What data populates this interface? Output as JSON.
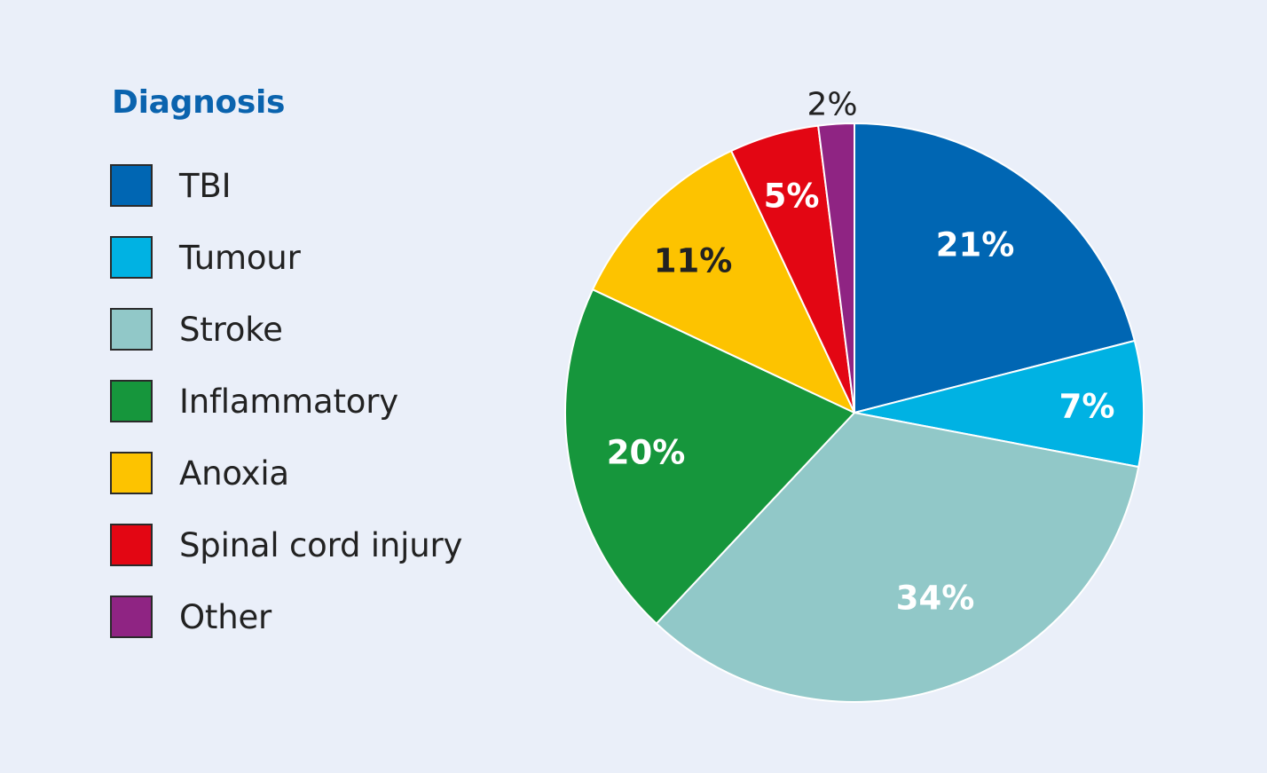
{
  "chart_data": {
    "type": "pie",
    "legend_title": "Diagnosis",
    "legend_position": "left",
    "slices": [
      {
        "name": "TBI",
        "value": 21,
        "label": "21%",
        "color": "#0066b3",
        "label_color": "#ffffff",
        "label_outside": false
      },
      {
        "name": "Tumour",
        "value": 7,
        "label": "7%",
        "color": "#00b2e3",
        "label_color": "#ffffff",
        "label_outside": false
      },
      {
        "name": "Stroke",
        "value": 34,
        "label": "34%",
        "color": "#91c8c8",
        "label_color": "#ffffff",
        "label_outside": false
      },
      {
        "name": "Inflammatory",
        "value": 20,
        "label": "20%",
        "color": "#16963c",
        "label_color": "#ffffff",
        "label_outside": false
      },
      {
        "name": "Anoxia",
        "value": 11,
        "label": "11%",
        "color": "#fdc300",
        "label_color": "#222222",
        "label_outside": false
      },
      {
        "name": "Spinal cord injury",
        "value": 5,
        "label": "5%",
        "color": "#e30613",
        "label_color": "#ffffff",
        "label_outside": false
      },
      {
        "name": "Other",
        "value": 2,
        "label": "2%",
        "color": "#8f2483",
        "label_color": "#222222",
        "label_outside": true
      }
    ]
  }
}
